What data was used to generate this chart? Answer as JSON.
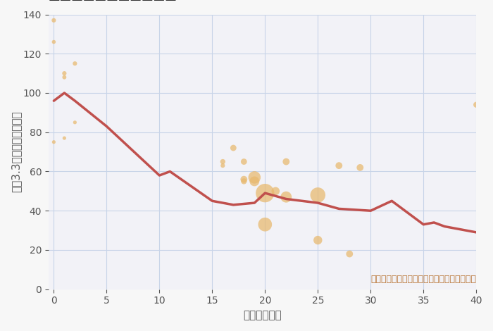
{
  "xlabel": "築年数（年）",
  "ylabel": "坪（3.3㎡）単価（万円）",
  "annotation": "円の大きさは、取引のあった物件面積を示す",
  "bg_color": "#f7f7f7",
  "plot_bg_color": "#f2f2f7",
  "grid_color": "#c8d4e8",
  "line_color": "#c0504d",
  "scatter_color": "#e8b86d",
  "scatter_alpha": 0.72,
  "xlim": [
    -0.5,
    40
  ],
  "ylim": [
    0,
    140
  ],
  "xticks": [
    0,
    5,
    10,
    15,
    20,
    25,
    30,
    35,
    40
  ],
  "yticks": [
    0,
    20,
    40,
    60,
    80,
    100,
    120,
    140
  ],
  "line_x": [
    0,
    1,
    2,
    5,
    10,
    11,
    15,
    17,
    19,
    20,
    22,
    25,
    27,
    30,
    32,
    35,
    36,
    37,
    40
  ],
  "line_y": [
    96,
    100,
    96,
    83,
    58,
    60,
    45,
    43,
    44,
    49,
    46,
    44,
    41,
    40,
    45,
    33,
    34,
    32,
    29
  ],
  "scatter_x": [
    0,
    0,
    0,
    1,
    1,
    1,
    2,
    2,
    16,
    16,
    17,
    18,
    18,
    18,
    19,
    19,
    20,
    20,
    21,
    22,
    22,
    25,
    25,
    27,
    28,
    29,
    40
  ],
  "scatter_y": [
    137,
    126,
    75,
    110,
    108,
    77,
    85,
    115,
    65,
    63,
    72,
    56,
    65,
    55,
    57,
    55,
    49,
    33,
    50,
    47,
    65,
    48,
    25,
    63,
    18,
    62,
    94
  ],
  "scatter_size": [
    100,
    80,
    70,
    100,
    90,
    70,
    70,
    100,
    140,
    100,
    200,
    250,
    200,
    180,
    800,
    500,
    1800,
    1000,
    350,
    650,
    250,
    1200,
    400,
    250,
    250,
    250,
    180
  ],
  "title_fontsize": 20,
  "label_fontsize": 11,
  "tick_fontsize": 10,
  "annot_fontsize": 9,
  "annot_color": "#b87333",
  "tick_color": "#555555",
  "label_color": "#555555",
  "title_color": "#333333"
}
